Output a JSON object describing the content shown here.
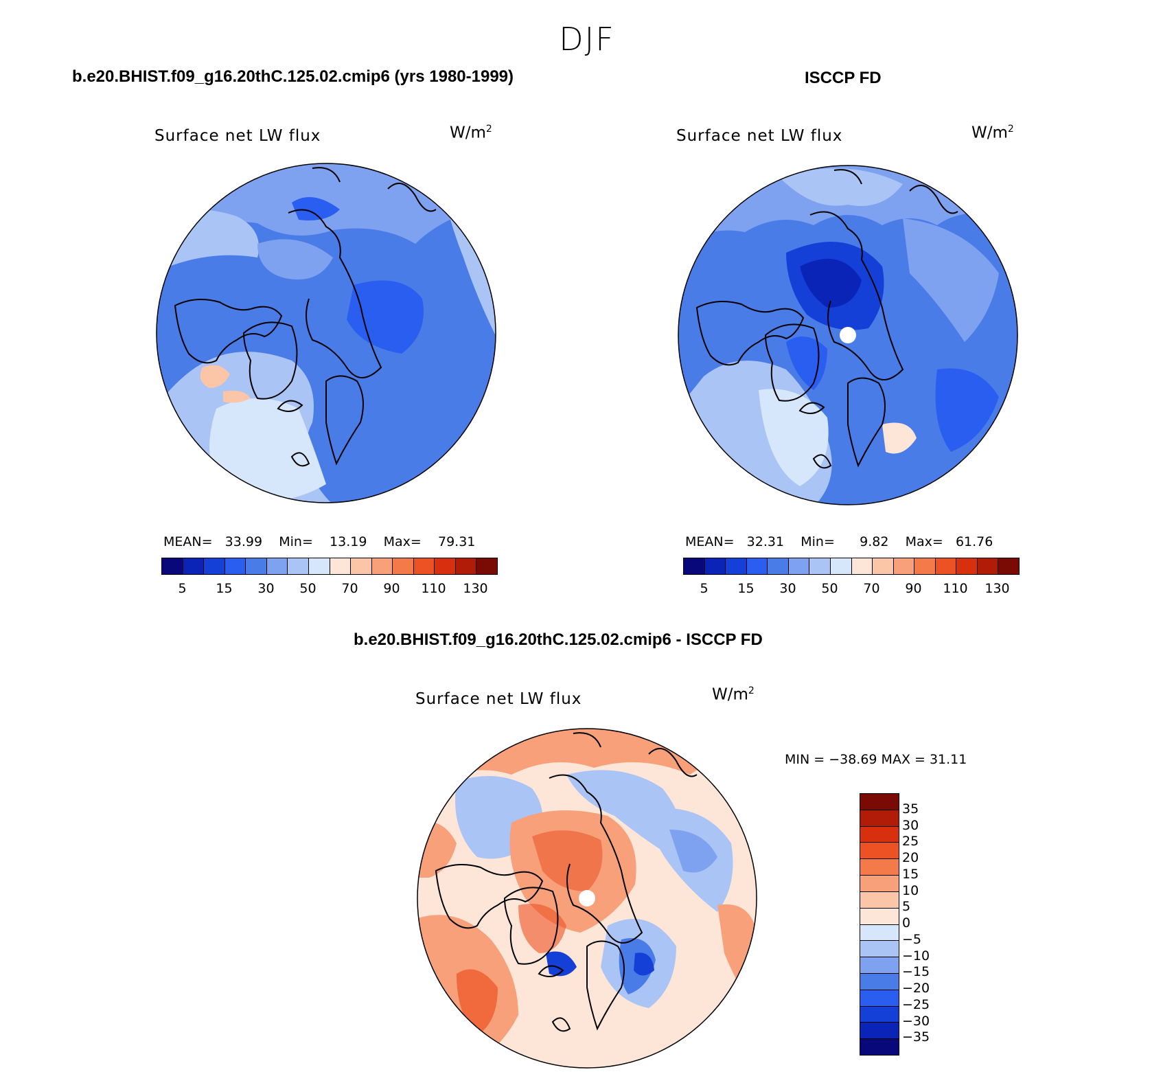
{
  "season": "DJF",
  "panels": {
    "model": {
      "header": "b.e20.BHIST.f09_g16.20thC.125.02.cmip6 (yrs 1980-1999)",
      "title": "Surface net LW flux",
      "units": "W/m",
      "units_sup": "2",
      "stats": {
        "mean_label": "MEAN=",
        "mean": "33.99",
        "min_label": "Min=",
        "min": "13.19",
        "max_label": "Max=",
        "max": "79.31"
      }
    },
    "obs": {
      "header": "ISCCP FD",
      "title": "Surface net LW flux",
      "units": "W/m",
      "units_sup": "2",
      "stats": {
        "mean_label": "MEAN=",
        "mean": "32.31",
        "min_label": "Min=",
        "min": "9.82",
        "max_label": "Max=",
        "max": "61.76"
      }
    },
    "diff": {
      "header": "b.e20.BHIST.f09_g16.20thC.125.02.cmip6 - ISCCP FD",
      "title": "Surface net LW flux",
      "units": "W/m",
      "units_sup": "2",
      "minmax": "MIN = −38.69  MAX =   31.11"
    }
  },
  "abs_colorbar": {
    "colors": [
      "#08087a",
      "#0a24b8",
      "#1440d8",
      "#2a5ef0",
      "#4a7ce8",
      "#7ea2f0",
      "#aac4f6",
      "#d6e6fb",
      "#fde6d8",
      "#fbc6a8",
      "#f7a07a",
      "#f47a4a",
      "#ec5224",
      "#d8300e",
      "#b01c08",
      "#7a0a04"
    ],
    "ticks": [
      "5",
      "15",
      "30",
      "50",
      "70",
      "90",
      "110",
      "130"
    ]
  },
  "diff_colorbar": {
    "colors": [
      "#7a0a04",
      "#b01c08",
      "#d8300e",
      "#ec5224",
      "#f47a4a",
      "#f7a07a",
      "#fbc6a8",
      "#fde6d8",
      "#d6e6fb",
      "#aac4f6",
      "#7ea2f0",
      "#4a7ce8",
      "#2a5ef0",
      "#1440d8",
      "#0a24b8",
      "#08087a"
    ],
    "ticks": [
      "35",
      "30",
      "25",
      "20",
      "15",
      "10",
      "5",
      "0",
      "−5",
      "−10",
      "−15",
      "−20",
      "−25",
      "−30",
      "−35"
    ]
  },
  "map_colors": {
    "model_base": "#4a7ce8",
    "model_light": "#aac4f6",
    "model_lighter": "#d6e6fb",
    "model_dark": "#2a5ef0",
    "model_warm": "#fbc6a8",
    "obs_base": "#4a7ce8",
    "obs_light": "#aac4f6",
    "obs_dark": "#1440d8",
    "obs_darker": "#0a24b8",
    "diff_warm": "#f7a07a",
    "diff_hot": "#ec5224",
    "diff_pale": "#fde6d8",
    "diff_cool": "#aac4f6",
    "diff_blue": "#4a7ce8",
    "diff_deep": "#1440d8"
  }
}
